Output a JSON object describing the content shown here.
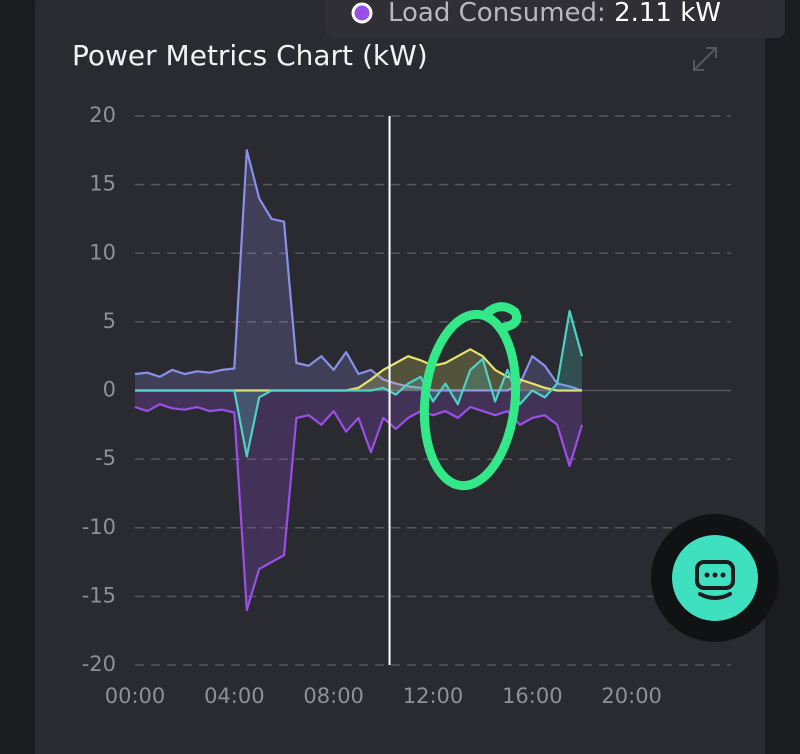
{
  "chart_data": {
    "type": "line",
    "title": "Power Metrics Chart (kW)",
    "tooltip": {
      "label": "Load Consumed:",
      "value": "2.11 kW",
      "color": "#9b4ee8"
    },
    "crosshair_x": 10.25,
    "x": [
      0,
      0.5,
      1,
      1.5,
      2,
      2.5,
      3,
      3.5,
      4,
      4.5,
      5,
      5.5,
      6,
      6.5,
      7,
      7.5,
      8,
      8.5,
      9,
      9.5,
      10,
      10.5,
      11,
      11.5,
      12,
      12.5,
      13,
      13.5,
      14,
      14.5,
      15,
      15.5,
      16,
      16.5,
      17,
      17.5,
      18
    ],
    "series": [
      {
        "color": "#8b8fe8",
        "values": [
          1.2,
          1.3,
          1.0,
          1.5,
          1.2,
          1.4,
          1.3,
          1.5,
          1.6,
          17.5,
          14,
          12.5,
          12.3,
          2,
          1.8,
          2.5,
          1.5,
          2.8,
          1.2,
          1.5,
          0.8,
          0.5,
          0.3,
          0.2,
          0,
          0,
          0,
          0,
          0,
          0,
          0,
          0.5,
          2.5,
          1.8,
          0.5,
          0.3,
          0
        ]
      },
      {
        "color": "#9b4ee8",
        "values": [
          -1.2,
          -1.5,
          -1.0,
          -1.3,
          -1.4,
          -1.2,
          -1.5,
          -1.4,
          -1.6,
          -16,
          -13,
          -12.5,
          -12,
          -2,
          -1.8,
          -2.5,
          -1.5,
          -3,
          -2,
          -4.5,
          -2,
          -2.8,
          -2,
          -1.5,
          -1.8,
          -1.5,
          -2,
          -1.2,
          -1.5,
          -1.8,
          -1.5,
          -2.5,
          -2,
          -1.8,
          -2.5,
          -5.5,
          -2.5
        ]
      },
      {
        "color": "#e6e26a",
        "values": [
          0,
          0,
          0,
          0,
          0,
          0,
          0,
          0,
          0,
          0,
          0,
          0,
          0,
          0,
          0,
          0,
          0,
          0,
          0.2,
          0.8,
          1.5,
          2,
          2.5,
          2.2,
          1.8,
          2,
          2.5,
          3,
          2.5,
          1.5,
          1,
          0.8,
          0.5,
          0.2,
          0,
          0,
          0
        ]
      },
      {
        "color": "#4fd1c5",
        "values": [
          0,
          0,
          0,
          0,
          0,
          0,
          0,
          0,
          0,
          -4.8,
          -0.5,
          0,
          0,
          0,
          0,
          0,
          0,
          0,
          0,
          0,
          0.2,
          -0.3,
          0.5,
          1,
          -0.8,
          0.5,
          -1,
          1.5,
          2.3,
          -0.8,
          1.5,
          -1,
          0,
          -0.5,
          0.5,
          5.8,
          2.5
        ]
      }
    ],
    "xlim": [
      0,
      24
    ],
    "xticks": [
      {
        "value": 0,
        "label": "00:00"
      },
      {
        "value": 4,
        "label": "04:00"
      },
      {
        "value": 8,
        "label": "08:00"
      },
      {
        "value": 12,
        "label": "12:00"
      },
      {
        "value": 16,
        "label": "16:00"
      },
      {
        "value": 20,
        "label": "20:00"
      }
    ],
    "ylim": [
      -20,
      20
    ],
    "yticks": [
      20,
      15,
      10,
      5,
      0,
      -5,
      -10,
      -15,
      -20
    ],
    "grid": true
  }
}
